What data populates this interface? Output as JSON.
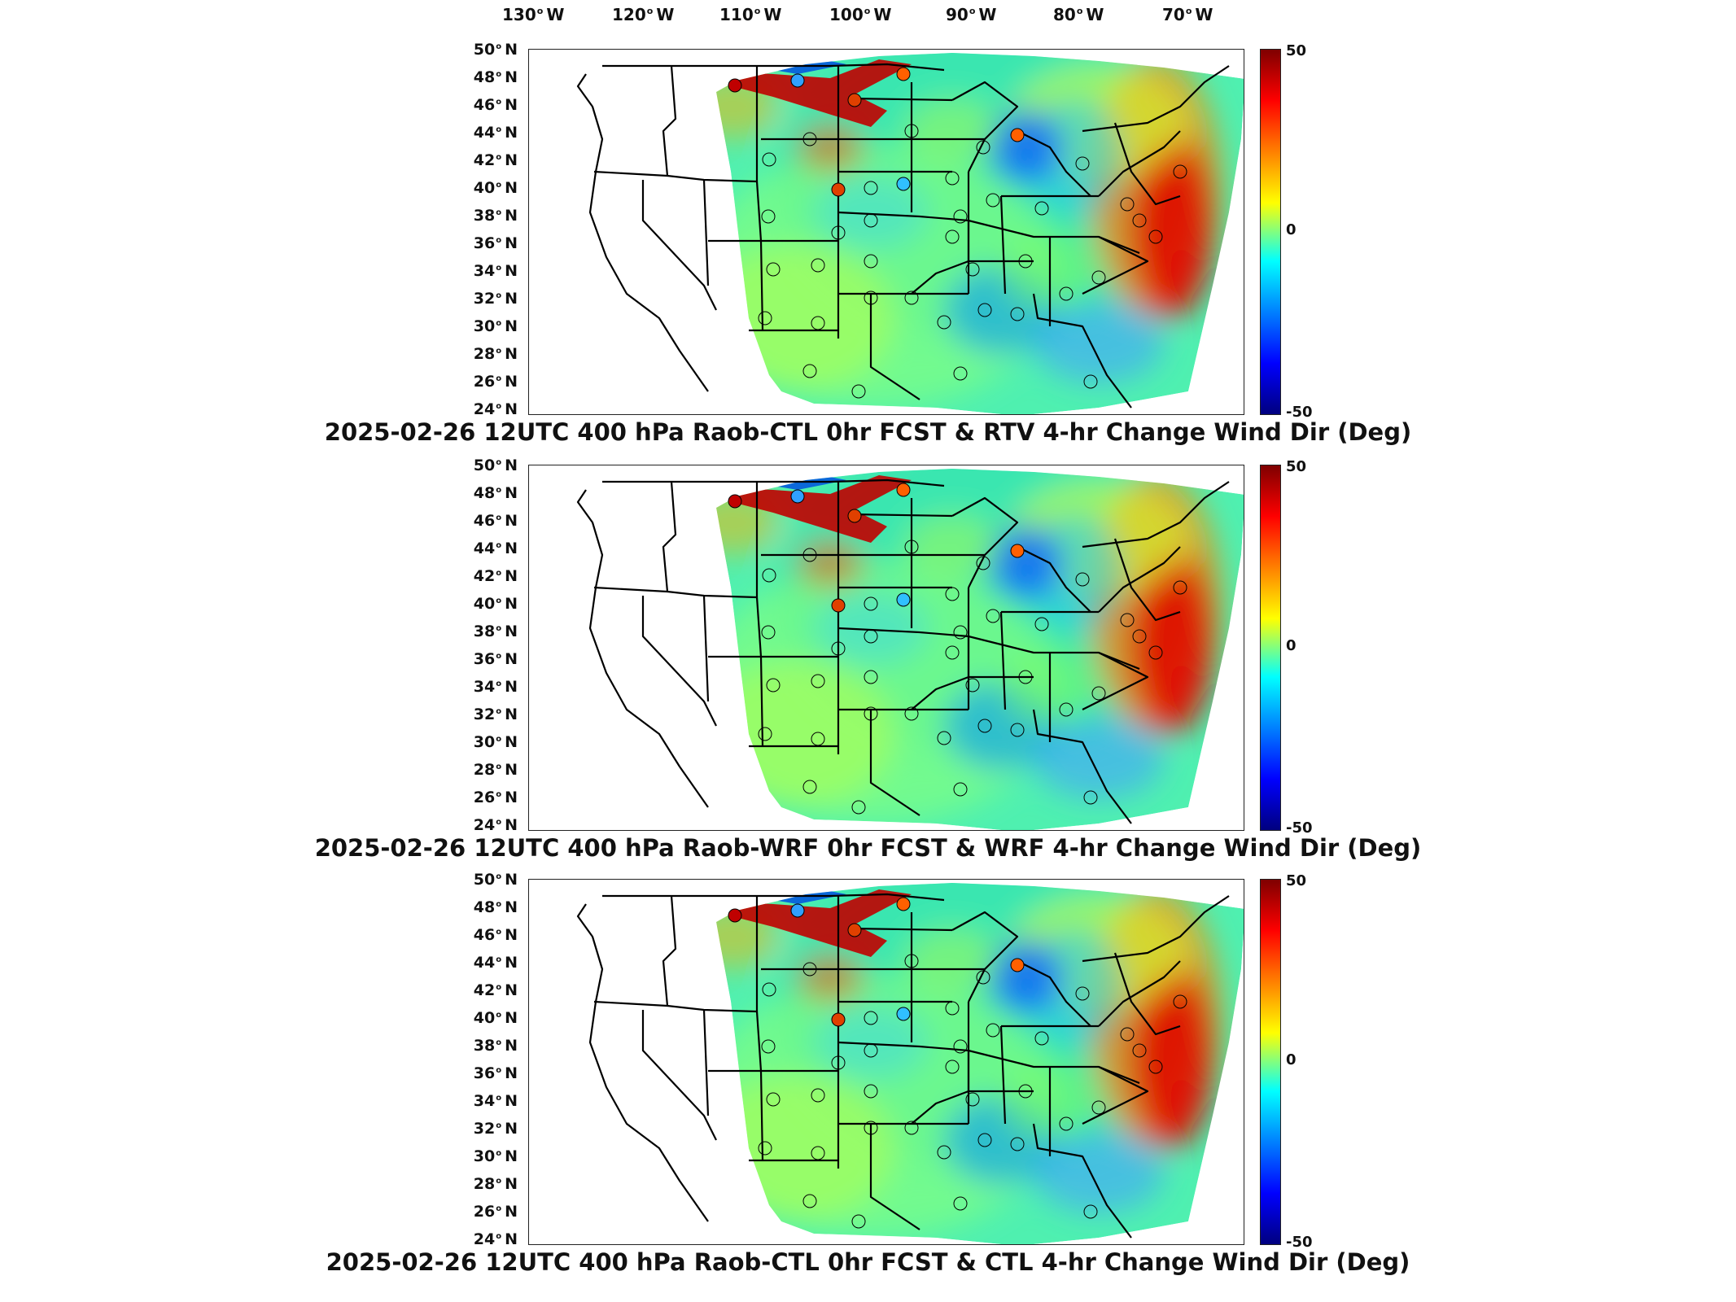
{
  "lon_labels": [
    {
      "deg": "130",
      "hemi": "W"
    },
    {
      "deg": "120",
      "hemi": "W"
    },
    {
      "deg": "110",
      "hemi": "W"
    },
    {
      "deg": "100",
      "hemi": "W"
    },
    {
      "deg": "90",
      "hemi": "W"
    },
    {
      "deg": "80",
      "hemi": "W"
    },
    {
      "deg": "70",
      "hemi": "W"
    }
  ],
  "lat_labels": [
    {
      "deg": "50",
      "hemi": "N"
    },
    {
      "deg": "48",
      "hemi": "N"
    },
    {
      "deg": "46",
      "hemi": "N"
    },
    {
      "deg": "44",
      "hemi": "N"
    },
    {
      "deg": "42",
      "hemi": "N"
    },
    {
      "deg": "40",
      "hemi": "N"
    },
    {
      "deg": "38",
      "hemi": "N"
    },
    {
      "deg": "36",
      "hemi": "N"
    },
    {
      "deg": "34",
      "hemi": "N"
    },
    {
      "deg": "32",
      "hemi": "N"
    },
    {
      "deg": "30",
      "hemi": "N"
    },
    {
      "deg": "28",
      "hemi": "N"
    },
    {
      "deg": "26",
      "hemi": "N"
    },
    {
      "deg": "24",
      "hemi": "N"
    }
  ],
  "colorbar": {
    "max_label": "50",
    "mid_label": "0",
    "min_label": "-50",
    "range": [
      -50,
      50
    ],
    "colormap": "jet",
    "colors": [
      "#7f0000",
      "#ff0000",
      "#ff8000",
      "#ffff00",
      "#80ff80",
      "#00ffff",
      "#0080ff",
      "#0000ff",
      "#00007f"
    ]
  },
  "panels": [
    {
      "title": "2025-02-26 12UTC 400 hPa Raob-CTL 0hr FCST & RTV 4-hr Change Wind Dir (Deg)"
    },
    {
      "title": "2025-02-26 12UTC 400 hPa Raob-WRF 0hr FCST & WRF 4-hr Change Wind Dir (Deg)"
    },
    {
      "title": "2025-02-26 12UTC 400 hPa Raob-CTL 0hr FCST & CTL 4-hr Change Wind Dir (Deg)"
    }
  ]
}
